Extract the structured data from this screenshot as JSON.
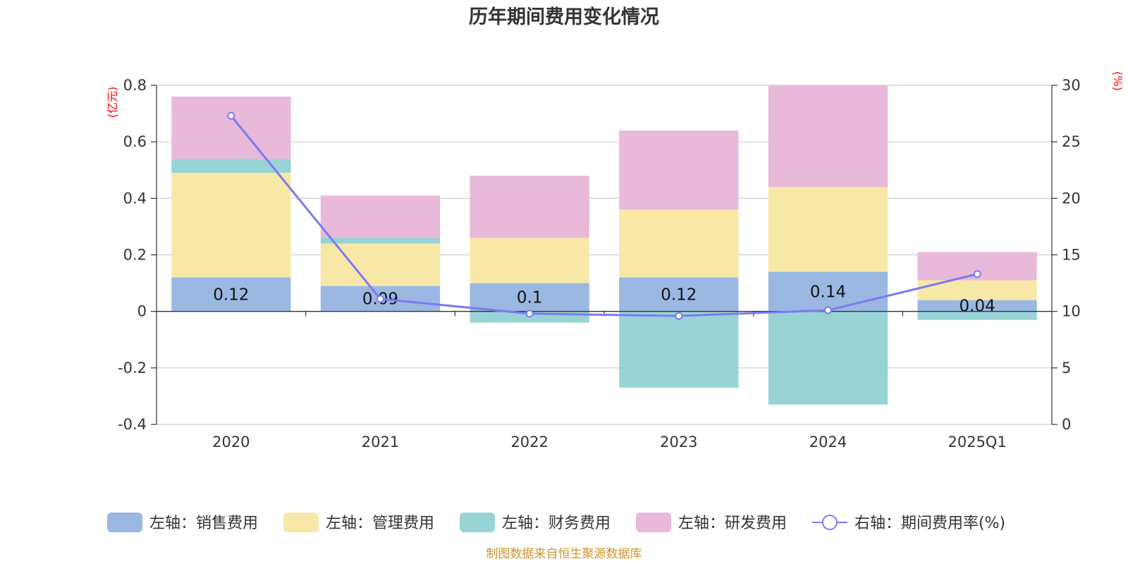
{
  "chart_data": {
    "type": "bar",
    "stacked": true,
    "title": "历年期间费用变化情况",
    "categories": [
      "2020",
      "2021",
      "2022",
      "2023",
      "2024",
      "2025Q1"
    ],
    "left_axis": {
      "unit": "(亿元)",
      "ylim": [
        -0.4,
        0.8
      ],
      "ticks": [
        -0.4,
        -0.2,
        0,
        0.2,
        0.4,
        0.6,
        0.8
      ],
      "tick_labels": [
        "-0.4",
        "-0.2",
        "0",
        "0.2",
        "0.4",
        "0.6",
        "0.8"
      ]
    },
    "right_axis": {
      "unit": "(%)",
      "ylim": [
        0,
        30
      ],
      "ticks": [
        0,
        5,
        10,
        15,
        20,
        25,
        30
      ],
      "tick_labels": [
        "0",
        "5",
        "10",
        "15",
        "20",
        "25",
        "30"
      ]
    },
    "series": [
      {
        "name": "左轴：销售费用",
        "axis": "left",
        "kind": "bar",
        "color": "#9bb8e3",
        "values": [
          0.12,
          0.09,
          0.1,
          0.12,
          0.14,
          0.04
        ],
        "labels": [
          "0.12",
          "0.09",
          "0.1",
          "0.12",
          "0.14",
          "0.04"
        ]
      },
      {
        "name": "左轴：管理费用",
        "axis": "left",
        "kind": "bar",
        "color": "#f8e8a8",
        "values": [
          0.37,
          0.15,
          0.16,
          0.24,
          0.3,
          0.07
        ]
      },
      {
        "name": "左轴：财务费用",
        "axis": "left",
        "kind": "bar",
        "color": "#98d4d6",
        "values": [
          0.05,
          0.02,
          -0.04,
          -0.27,
          -0.33,
          -0.03
        ]
      },
      {
        "name": "左轴：研发费用",
        "axis": "left",
        "kind": "bar",
        "color": "#e8b9d9",
        "values": [
          0.22,
          0.15,
          0.22,
          0.28,
          0.36,
          0.1
        ]
      },
      {
        "name": "右轴：期间费用率(%)",
        "axis": "right",
        "kind": "line",
        "color": "#7b7bf0",
        "values": [
          27.3,
          11.1,
          9.8,
          9.6,
          10.1,
          13.3
        ]
      }
    ],
    "legend_position": "bottom",
    "source": "制图数据来自恒生聚源数据库"
  }
}
